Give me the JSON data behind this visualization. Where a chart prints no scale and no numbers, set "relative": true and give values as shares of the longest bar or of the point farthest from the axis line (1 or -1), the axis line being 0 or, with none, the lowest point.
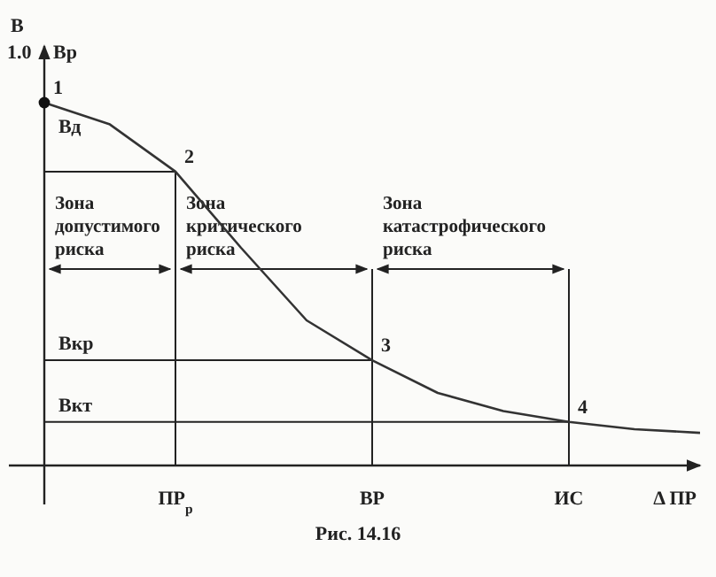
{
  "chart_data": {
    "type": "line",
    "relative": true,
    "ylabel": "В",
    "xlabel": "Δ ПР",
    "marker": "none",
    "categories": [
      null,
      null,
      "ПР$_{р}$",
      null,
      null,
      "ВР",
      null,
      null,
      "ИС",
      null,
      null
    ],
    "series": [
      {
        "color": "#333333",
        "values": [
          1,
          0.94,
          0.81,
          0.6,
          0.4,
          0.29,
          0.2,
          0.15,
          0.12,
          0.1,
          0.09
        ]
      },
      {
        "type": "scatter",
        "marker": "circle",
        "color": "#111111",
        "values": [
          1,
          null,
          null,
          null,
          null,
          null,
          null,
          null,
          null,
          null,
          null
        ]
      }
    ],
    "ref_lines": [
      {
        "axis": "y",
        "value": 0.81,
        "label": "Вд"
      },
      {
        "axis": "y",
        "value": 0.29,
        "label": "Вкр"
      },
      {
        "axis": "y",
        "value": 0.12,
        "label": "Вкт"
      },
      {
        "axis": "x",
        "value": "ПР$_{р}$"
      },
      {
        "axis": "x",
        "value": "ВР"
      },
      {
        "axis": "x",
        "value": "ИС"
      }
    ],
    "annotations": [
      "1.0",
      "Вр",
      "Рис. 14.16",
      "Зона допустимого риска",
      "Зона критического риска",
      "Зона катастрофического риска",
      {
        "text": "1",
        "y": 1
      },
      {
        "text": "2",
        "x": "ПР$_{р}$",
        "y": 0.81
      },
      {
        "text": "3",
        "x": "ВР",
        "y": 0.29
      },
      {
        "text": "4",
        "x": "ИС",
        "y": 0.12
      }
    ]
  }
}
